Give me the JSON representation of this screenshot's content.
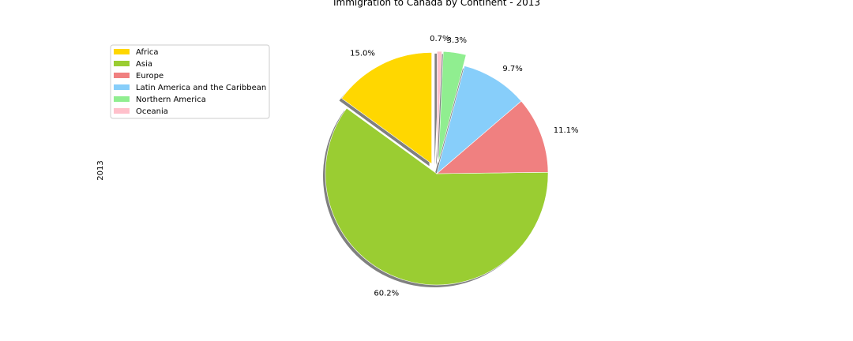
{
  "chart_data": {
    "type": "pie",
    "title": "Immigration to Canada by Continent - 2013",
    "ylabel": "2013",
    "start_angle_deg": 90,
    "direction": "counterclockwise",
    "shadow": true,
    "legend_placement": "upper-left",
    "slices": [
      {
        "label": "Africa",
        "percent": 15.0,
        "pct_label": "15.0%",
        "color": "#FFD700",
        "explode": 0.1
      },
      {
        "label": "Asia",
        "percent": 60.2,
        "pct_label": "60.2%",
        "color": "#9ACD32",
        "explode": 0.0
      },
      {
        "label": "Europe",
        "percent": 11.1,
        "pct_label": "11.1%",
        "color": "#F08080",
        "explode": 0.0
      },
      {
        "label": "Latin America and the Caribbean",
        "percent": 9.7,
        "pct_label": "9.7%",
        "color": "#87CEFA",
        "explode": 0.0
      },
      {
        "label": "Northern America",
        "percent": 3.3,
        "pct_label": "3.3%",
        "color": "#90EE90",
        "explode": 0.1
      },
      {
        "label": "Oceania",
        "percent": 0.7,
        "pct_label": "0.7%",
        "color": "#FFC0CB",
        "explode": 0.1
      }
    ]
  }
}
